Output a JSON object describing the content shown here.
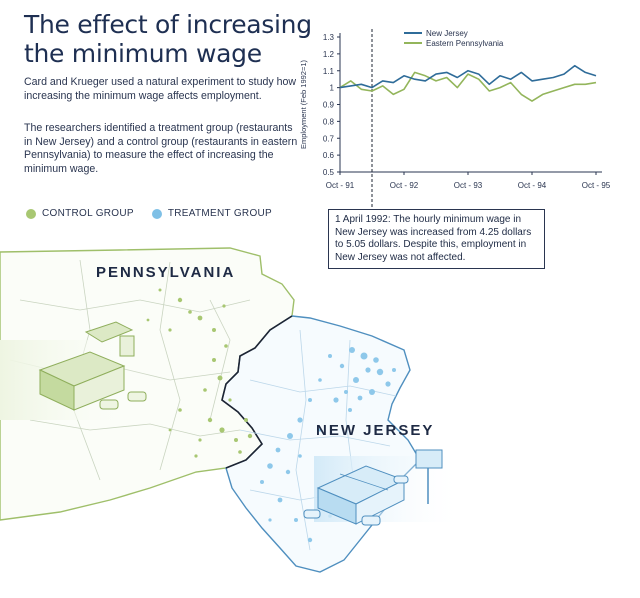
{
  "header": {
    "title_line1": "The effect of increasing",
    "title_line2": "the minimum wage"
  },
  "description": {
    "paragraph1": "Card and Krueger used a natural experiment to study how increasing the minimum wage affects employment.",
    "paragraph2": "The researchers identified a treatment group (restaurants in New Jersey) and a control group (restaurants in eastern Pennsylvania) to measure the effect of increasing the minimum wage."
  },
  "groups_legend": {
    "control": "CONTROL GROUP",
    "treatment": "TREATMENT GROUP"
  },
  "map": {
    "pennsylvania_label": "PENNSYLVANIA",
    "new_jersey_label": "NEW JERSEY"
  },
  "annotation": {
    "text": "1 April 1992: The hourly minimum wage in New Jersey was increased from 4.25 dollars to 5.05 dollars. Despite this, employment in New Jersey was not affected."
  },
  "colors": {
    "new_jersey": "#2f6c99",
    "eastern_pennsylvania": "#93b55b",
    "control_dot": "#a8c772",
    "treatment_dot": "#7fc0e6"
  },
  "chart_data": {
    "type": "line",
    "title": "",
    "xlabel": "",
    "ylabel": "Employment (Feb 1992=1)",
    "xlim": [
      0,
      48
    ],
    "ylim": [
      0.5,
      1.3
    ],
    "y_ticks": [
      0.5,
      0.6,
      0.7,
      0.8,
      0.9,
      1,
      1.1,
      1.2,
      1.3
    ],
    "x_ticks": [
      {
        "value": 0,
        "label": "Oct - 91"
      },
      {
        "value": 12,
        "label": "Oct - 92"
      },
      {
        "value": 24,
        "label": "Oct - 93"
      },
      {
        "value": 36,
        "label": "Oct - 94"
      },
      {
        "value": 48,
        "label": "Oct - 95"
      }
    ],
    "event_x": 6,
    "legend_position": "top-right",
    "grid": false,
    "series": [
      {
        "name": "New Jersey",
        "color": "#2f6c99",
        "x": [
          0,
          2,
          4,
          6,
          8,
          10,
          12,
          14,
          16,
          18,
          20,
          22,
          24,
          26,
          28,
          30,
          32,
          34,
          36,
          38,
          40,
          42,
          44,
          46,
          48
        ],
        "values": [
          1.0,
          1.01,
          1.02,
          1.0,
          1.04,
          1.03,
          1.07,
          1.05,
          1.04,
          1.08,
          1.09,
          1.06,
          1.1,
          1.08,
          1.02,
          1.07,
          1.05,
          1.09,
          1.04,
          1.05,
          1.06,
          1.08,
          1.13,
          1.09,
          1.07
        ]
      },
      {
        "name": "Eastern Pennsylvania",
        "color": "#93b55b",
        "x": [
          0,
          2,
          4,
          6,
          8,
          10,
          12,
          14,
          16,
          18,
          20,
          22,
          24,
          26,
          28,
          30,
          32,
          34,
          36,
          38,
          40,
          42,
          44,
          46,
          48
        ],
        "values": [
          1.0,
          1.04,
          0.99,
          0.98,
          1.01,
          0.96,
          0.99,
          1.09,
          1.07,
          1.04,
          1.06,
          1.0,
          1.08,
          1.05,
          0.98,
          1.0,
          1.03,
          0.96,
          0.92,
          0.96,
          0.98,
          1.0,
          1.02,
          1.02,
          1.03
        ]
      }
    ]
  }
}
